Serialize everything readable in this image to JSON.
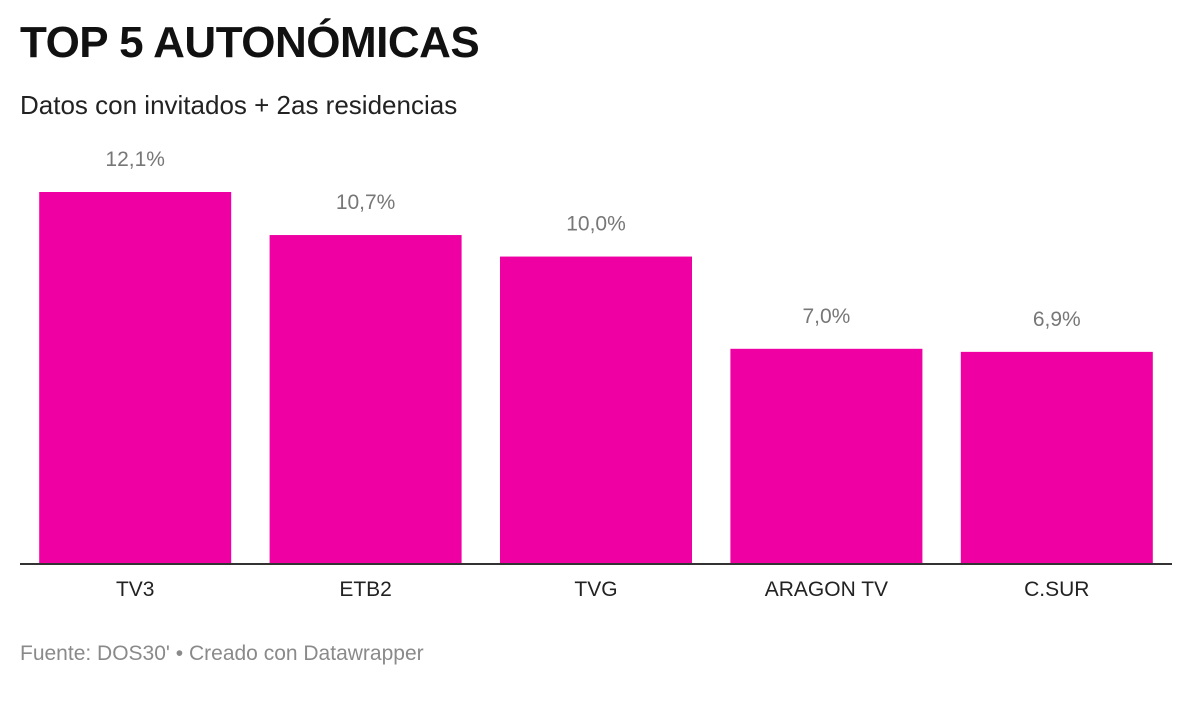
{
  "title": "TOP 5 AUTONÓMICAS",
  "subtitle": "Datos con invitados + 2as residencias",
  "footer": {
    "source": "Fuente: DOS30'",
    "separator": "•",
    "credit": "Creado con Datawrapper"
  },
  "colors": {
    "bar": "#ee00a3",
    "value_label": "#777777",
    "category_label": "#222222",
    "baseline": "#333333"
  },
  "chart_data": {
    "type": "bar",
    "title": "TOP 5 AUTONÓMICAS",
    "subtitle": "Datos con invitados + 2as residencias",
    "categories": [
      "TV3",
      "ETB2",
      "TVG",
      "ARAGON TV",
      "C.SUR"
    ],
    "values": [
      12.1,
      10.7,
      10.0,
      7.0,
      6.9
    ],
    "value_labels": [
      "12,1%",
      "10,7%",
      "10,0%",
      "7,0%",
      "6,9%"
    ],
    "xlabel": "",
    "ylabel": "",
    "ylim": [
      0,
      12.1
    ],
    "grid": false,
    "legend": "none"
  }
}
